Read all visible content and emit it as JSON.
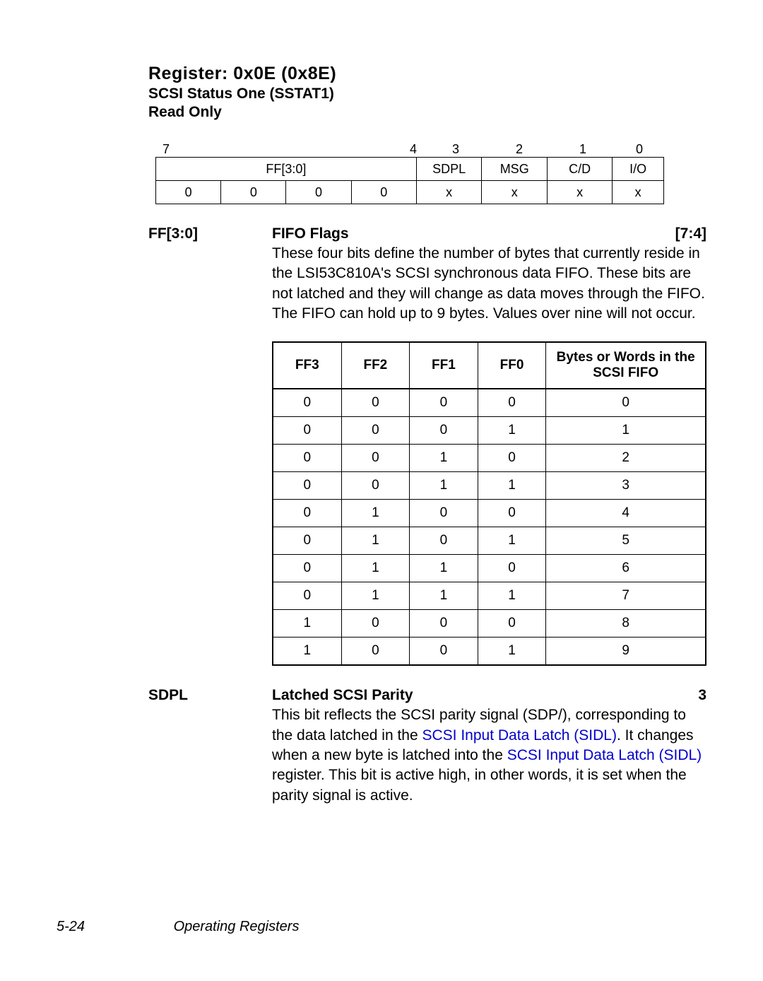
{
  "register": {
    "title": "Register:  0x0E (0x8E)",
    "subtitle": "SCSI Status One (SSTAT1)",
    "readonly": "Read Only"
  },
  "bit_numbers": {
    "b7": "7",
    "b4": "4",
    "b3": "3",
    "b2": "2",
    "b1": "1",
    "b0": "0"
  },
  "bit_labels": {
    "ff": "FF[3:0]",
    "sdpl": "SDPL",
    "msg": "MSG",
    "cd": "C/D",
    "io": "I/O"
  },
  "bit_values": {
    "v7": "0",
    "v6": "0",
    "v5": "0",
    "v4": "0",
    "v3": "x",
    "v2": "x",
    "v1": "x",
    "v0": "x"
  },
  "ff_field": {
    "label": "FF[3:0]",
    "name": "FIFO Flags",
    "bits": "[7:4]",
    "desc": "These four bits define the number of bytes that currently reside in the LSI53C810A's SCSI synchronous data FIFO. These bits are not latched and they will change as data moves through the FIFO. The FIFO can hold up to 9 bytes. Values over nine will not occur."
  },
  "fifo_table": {
    "headers": {
      "ff3": "FF3",
      "ff2": "FF2",
      "ff1": "FF1",
      "ff0": "FF0",
      "bytes": "Bytes or Words in the SCSI FIFO"
    },
    "rows": [
      [
        "0",
        "0",
        "0",
        "0",
        "0"
      ],
      [
        "0",
        "0",
        "0",
        "1",
        "1"
      ],
      [
        "0",
        "0",
        "1",
        "0",
        "2"
      ],
      [
        "0",
        "0",
        "1",
        "1",
        "3"
      ],
      [
        "0",
        "1",
        "0",
        "0",
        "4"
      ],
      [
        "0",
        "1",
        "0",
        "1",
        "5"
      ],
      [
        "0",
        "1",
        "1",
        "0",
        "6"
      ],
      [
        "0",
        "1",
        "1",
        "1",
        "7"
      ],
      [
        "1",
        "0",
        "0",
        "0",
        "8"
      ],
      [
        "1",
        "0",
        "0",
        "1",
        "9"
      ]
    ]
  },
  "sdpl_field": {
    "label": "SDPL",
    "name": "Latched SCSI Parity",
    "bits": "3",
    "desc_pre": "This bit reflects the SCSI parity signal (SDP/), corresponding to the data latched in the ",
    "link1": "SCSI Input Data Latch (SIDL)",
    "desc_mid": ". It changes when a new byte is latched into the ",
    "link2": "SCSI Input Data Latch (SIDL)",
    "desc_post": " register. This bit is active high, in other words, it is set when the parity signal is active."
  },
  "footer": {
    "pagenum": "5-24",
    "chapter": "Operating Registers"
  }
}
